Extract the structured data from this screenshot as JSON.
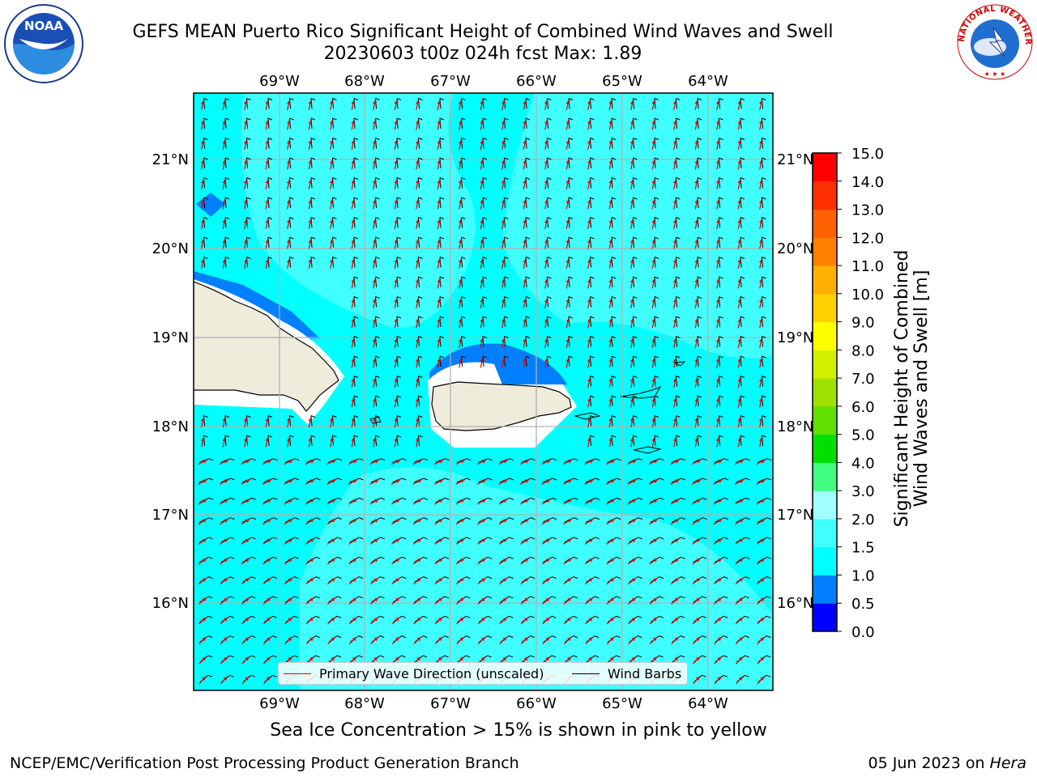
{
  "title": {
    "line1": "GEFS MEAN Puerto Rico Significant Height of Combined Wind Waves and Swell",
    "line2": "20230603 t00z 024h fcst   Max: 1.89"
  },
  "logos": {
    "left": {
      "text": "NOAA",
      "icon": "noaa-logo"
    },
    "right": {
      "text": "NATIONAL WEATHER SERVICE",
      "icon": "nws-logo"
    }
  },
  "map": {
    "lon_ticks": [
      "69°W",
      "68°W",
      "67°W",
      "66°W",
      "65°W",
      "64°W"
    ],
    "lat_ticks": [
      "21°N",
      "20°N",
      "19°N",
      "18°N",
      "17°N",
      "16°N"
    ],
    "colors": {
      "land": "#f0ecdc",
      "ocean_1_1_5": "#00ffff",
      "ocean_1_5_2": "#40ffff",
      "ocean_0_5_1": "#0080ff",
      "grid": "#b0b0b0",
      "wave_arrow": "#e00000",
      "wind_barb": "#000000"
    }
  },
  "legend": {
    "wave": "Primary Wave Direction (unscaled)",
    "wind": "Wind Barbs",
    "wave_color": "#e00000",
    "wind_color": "#000000"
  },
  "colorbar": {
    "label_line1": "Significant Height of Combined",
    "label_line2": "Wind Waves and Swell [m]",
    "ticks": [
      "0.0",
      "0.5",
      "1.0",
      "1.5",
      "2.0",
      "3.0",
      "4.0",
      "5.0",
      "6.0",
      "7.0",
      "8.0",
      "9.0",
      "10.0",
      "11.0",
      "12.0",
      "13.0",
      "14.0",
      "15.0"
    ],
    "colors": [
      "#0000ff",
      "#0080ff",
      "#00ffff",
      "#40ffff",
      "#a0ffff",
      "#40ff80",
      "#00e000",
      "#60e000",
      "#a0e000",
      "#d0f000",
      "#ffff00",
      "#ffd000",
      "#ffb000",
      "#ff8000",
      "#ff6000",
      "#ff3000",
      "#ff0000"
    ]
  },
  "note": "Sea Ice Concentration > 15% is shown in pink to yellow",
  "footer": {
    "left": "NCEP/EMC/Verification Post Processing Product Generation Branch",
    "right_date": "05 Jun 2023 on ",
    "right_host": "Hera"
  }
}
